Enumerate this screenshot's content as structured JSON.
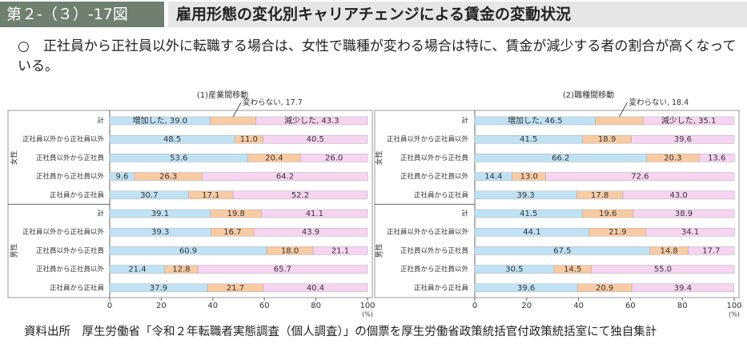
{
  "header": {
    "number": "第２-（３）-17図",
    "title": "雇用形態の変化別キャリアチェンジによる賃金の変動状況"
  },
  "summary": "○　正社員から正社員以外に転職する場合は、女性で職種が変わる場合は特に、賃金が減少する者の割合が高くなっている。",
  "source": "資料出所　厚生労働省「令和２年転職者実態調査（個人調査）」の個票を厚生労働省政策統括官付政策統括室にて独自集計",
  "chart_data": [
    {
      "type": "bar",
      "orientation": "horizontal",
      "stacked": true,
      "title": "(1)産業間移動",
      "group_labels": [
        "女性",
        "男性"
      ],
      "categories": [
        "計",
        "正社員以外から正社員以外",
        "正社員以外から正社員",
        "正社員から正社員以外",
        "正社員から正社員",
        "計",
        "正社員以外から正社員以外",
        "正社員以外から正社員",
        "正社員から正社員以外",
        "正社員から正社員"
      ],
      "series": [
        {
          "name": "増加した",
          "color": "#bfe2f5",
          "values": [
            39.0,
            48.5,
            53.6,
            9.6,
            30.7,
            39.1,
            39.3,
            60.9,
            21.4,
            37.9
          ],
          "value_labels": [
            ", 39.0",
            "48.5",
            "53.6",
            "9.6",
            "30.7",
            "39.1",
            "39.3",
            "60.9",
            "21.4",
            "37.9"
          ]
        },
        {
          "name": "変わらない",
          "color": "#f9cba3",
          "values": [
            17.7,
            11.0,
            20.4,
            26.3,
            17.1,
            19.8,
            16.7,
            18.0,
            12.8,
            21.7
          ],
          "value_labels": [
            ", 17.7",
            "11.0",
            "20.4",
            "26.3",
            "17.1",
            "19.8",
            "16.7",
            "18.0",
            "12.8",
            "21.7"
          ]
        },
        {
          "name": "減少した",
          "color": "#f7d4f2",
          "values": [
            43.3,
            40.5,
            26.0,
            64.2,
            52.2,
            41.1,
            43.9,
            21.1,
            65.7,
            40.4
          ],
          "value_labels": [
            ", 43.3",
            "40.5",
            "26.0",
            "64.2",
            "52.2",
            "41.1",
            "43.9",
            "21.1",
            "65.7",
            "40.4"
          ]
        }
      ],
      "xlim": [
        0,
        100
      ],
      "xticks": [
        0,
        20,
        40,
        60,
        80,
        100
      ],
      "x_unit": "(%)"
    },
    {
      "type": "bar",
      "orientation": "horizontal",
      "stacked": true,
      "title": "(2)職種間移動",
      "group_labels": [
        "女性",
        "男性"
      ],
      "categories": [
        "計",
        "正社員以外から正社員以外",
        "正社員以外から正社員",
        "正社員から正社員以外",
        "正社員から正社員",
        "計",
        "正社員以外から正社員以外",
        "正社員以外から正社員",
        "正社員から正社員以外",
        "正社員から正社員"
      ],
      "series": [
        {
          "name": "増加した",
          "color": "#bfe2f5",
          "values": [
            46.5,
            41.5,
            66.2,
            14.4,
            39.3,
            41.5,
            44.1,
            67.5,
            30.5,
            39.6
          ],
          "value_labels": [
            ", 46.5",
            "41.5",
            "66.2",
            "14.4",
            "39.3",
            "41.5",
            "44.1",
            "67.5",
            "30.5",
            "39.6"
          ]
        },
        {
          "name": "変わらない",
          "color": "#f9cba3",
          "values": [
            18.4,
            18.9,
            20.3,
            13.0,
            17.8,
            19.6,
            21.9,
            14.8,
            14.5,
            20.9
          ],
          "value_labels": [
            ", 18.4",
            "18.9",
            "20.3",
            "13.0",
            "17.8",
            "19.6",
            "21.9",
            "14.8",
            "14.5",
            "20.9"
          ]
        },
        {
          "name": "減少した",
          "color": "#f7d4f2",
          "values": [
            35.1,
            39.6,
            13.6,
            72.6,
            43.0,
            38.9,
            34.1,
            17.7,
            55.0,
            39.4
          ],
          "value_labels": [
            ", 35.1",
            "39.6",
            "13.6",
            "72.6",
            "43.0",
            "38.9",
            "34.1",
            "17.7",
            "55.0",
            "39.4"
          ]
        }
      ],
      "xlim": [
        0,
        100
      ],
      "xticks": [
        0,
        20,
        40,
        60,
        80,
        100
      ],
      "x_unit": "(%)"
    }
  ]
}
